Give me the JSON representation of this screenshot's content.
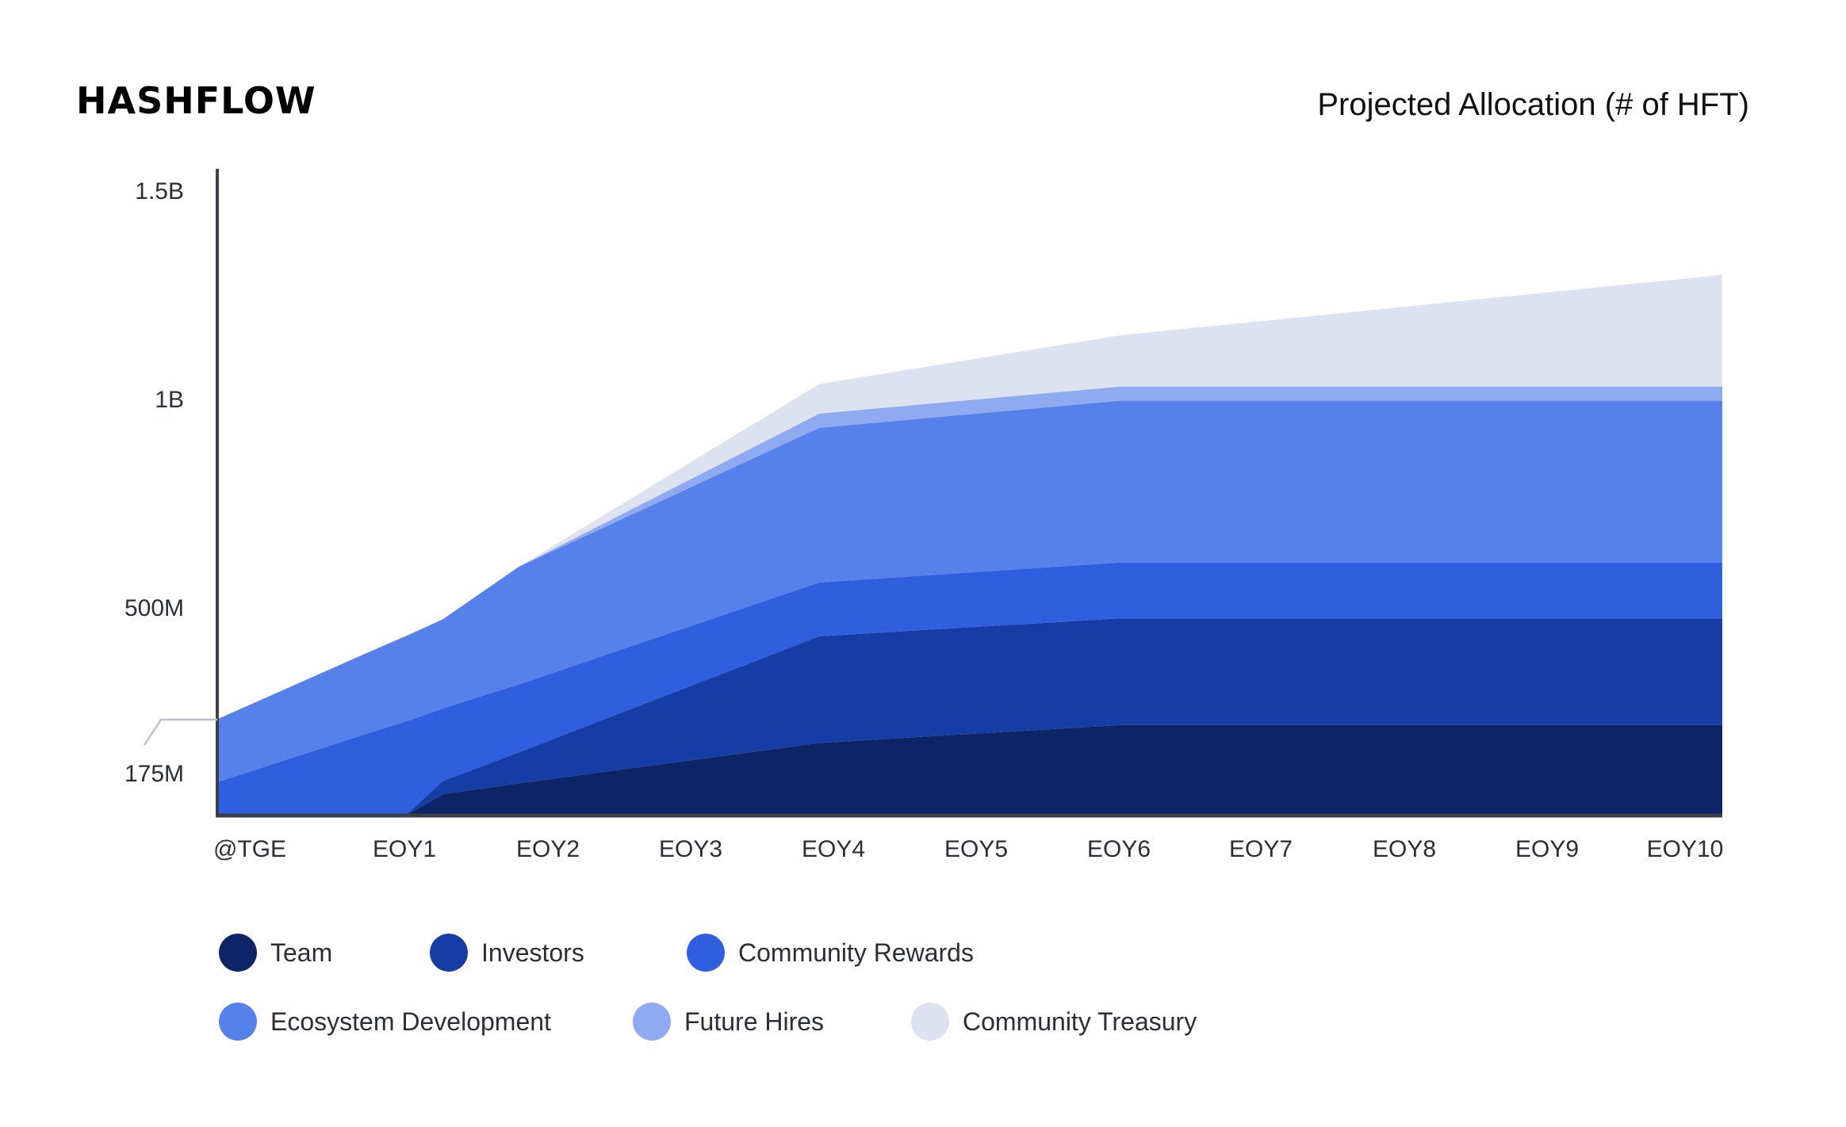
{
  "logo": "HASHFLOW",
  "chart_data": {
    "type": "area",
    "stacked": true,
    "title": "Projected Allocation (# of HFT)",
    "xlabel": "",
    "ylabel": "",
    "units": "millions of HFT",
    "ylim": [
      0,
      1500
    ],
    "x_tick_labels": [
      "@TGE",
      "EOY1",
      "EOY2",
      "EOY3",
      "EOY4",
      "EOY5",
      "EOY6",
      "EOY7",
      "EOY8",
      "EOY9",
      "EOY10"
    ],
    "x_ticks": [
      0,
      1,
      2,
      3,
      4,
      5,
      6,
      7,
      8,
      9,
      10
    ],
    "y_ticks": [
      {
        "value": 1500,
        "label": "1.5B"
      },
      {
        "value": 1000,
        "label": "1B"
      },
      {
        "value": 500,
        "label": "500M"
      },
      {
        "value": 175,
        "label": "175M"
      }
    ],
    "x": [
      0,
      1,
      1.25,
      1.5,
      2,
      4,
      6,
      10
    ],
    "series": [
      {
        "name": "Team",
        "color": "#0d2466",
        "values": [
          0,
          0,
          0,
          51,
          77,
          174,
          217,
          217
        ]
      },
      {
        "name": "Investors",
        "color": "#163ca6",
        "values": [
          0,
          0,
          0,
          32,
          74,
          256,
          256,
          256
        ]
      },
      {
        "name": "Community Rewards",
        "color": "#2f5ede",
        "values": [
          80,
          197,
          225,
          174,
          163,
          129,
          134,
          134
        ]
      },
      {
        "name": "Ecosystem Development",
        "color": "#5680ea",
        "values": [
          151,
          194,
          205,
          214,
          282,
          371,
          388,
          388
        ]
      },
      {
        "name": "Future Hires",
        "color": "#8faaf0",
        "values": [
          0,
          0,
          0,
          0,
          0,
          34,
          34,
          34
        ]
      },
      {
        "name": "Community Treasury",
        "color": "#dce2f0",
        "values": [
          0,
          0,
          0,
          0,
          0,
          71,
          123,
          268
        ]
      }
    ],
    "legend_position": "bottom-left",
    "grid": false
  }
}
